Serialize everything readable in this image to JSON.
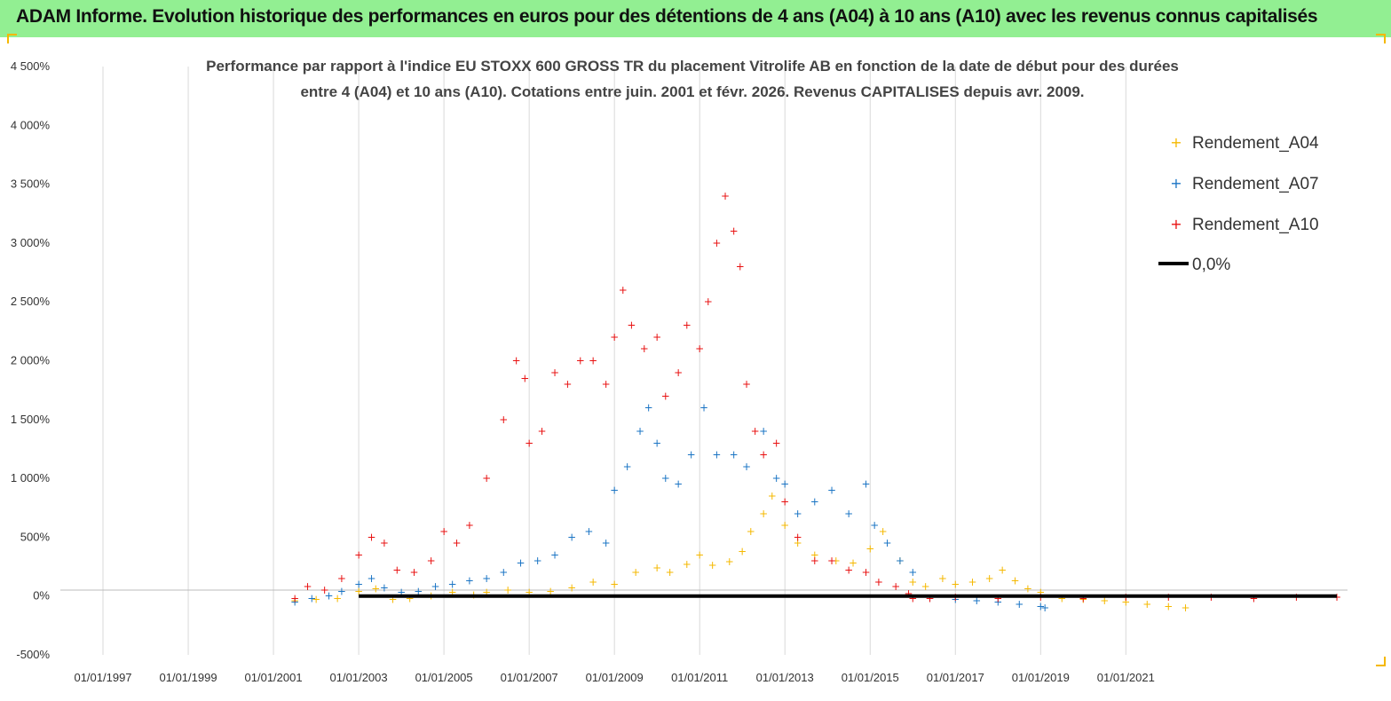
{
  "header": {
    "title": "ADAM Informe. Evolution historique des performances en euros pour des détentions de 4 ans (A04) à 10 ans (A10) avec les revenus connus capitalisés",
    "background": "#92ef92",
    "accent": "#f5b800"
  },
  "chart_data": {
    "type": "scatter",
    "title_line1": "Performance par rapport à l'indice EU STOXX 600 GROSS TR  du placement Vitrolife AB en fonction de la date de début pour des durées",
    "title_line2": "entre 4 (A04) et 10 ans (A10).  Cotations entre juin. 2001 et févr. 2026. Revenus CAPITALISES depuis avr. 2009.",
    "xlabel": "",
    "ylabel": "",
    "xlim": [
      1996.0,
      2026.2
    ],
    "ylim": [
      -500,
      4500
    ],
    "x_tick_labels": [
      "01/01/1997",
      "01/01/1999",
      "01/01/2001",
      "01/01/2003",
      "01/01/2005",
      "01/01/2007",
      "01/01/2009",
      "01/01/2011",
      "01/01/2013",
      "01/01/2015",
      "01/01/2017",
      "01/01/2019",
      "01/01/2021"
    ],
    "x_tick_values": [
      1997,
      1999,
      2001,
      2003,
      2005,
      2007,
      2009,
      2011,
      2013,
      2015,
      2017,
      2019,
      2021
    ],
    "y_tick_labels": [
      "4 500%",
      "4 000%",
      "3 500%",
      "3 000%",
      "2 500%",
      "2 000%",
      "1 500%",
      "1 000%",
      "500%",
      "0%",
      "-500%"
    ],
    "y_tick_values": [
      4500,
      4000,
      3500,
      3000,
      2500,
      2000,
      1500,
      1000,
      500,
      0,
      -500
    ],
    "grid": "vertical",
    "legend_position": "top-right",
    "series": [
      {
        "name": "Rendement_A04",
        "color": "#f5b800",
        "marker": "+",
        "points": [
          [
            2001.5,
            -40
          ],
          [
            2002.0,
            -30
          ],
          [
            2002.5,
            -20
          ],
          [
            2003.0,
            40
          ],
          [
            2003.4,
            60
          ],
          [
            2003.8,
            -30
          ],
          [
            2004.2,
            -20
          ],
          [
            2004.7,
            0
          ],
          [
            2005.2,
            30
          ],
          [
            2005.7,
            10
          ],
          [
            2006.0,
            30
          ],
          [
            2006.5,
            50
          ],
          [
            2007.0,
            30
          ],
          [
            2007.5,
            40
          ],
          [
            2008.0,
            70
          ],
          [
            2008.5,
            120
          ],
          [
            2009.0,
            100
          ],
          [
            2009.5,
            200
          ],
          [
            2010.0,
            240
          ],
          [
            2010.3,
            200
          ],
          [
            2010.7,
            270
          ],
          [
            2011.0,
            350
          ],
          [
            2011.3,
            260
          ],
          [
            2011.7,
            290
          ],
          [
            2012.0,
            380
          ],
          [
            2012.2,
            550
          ],
          [
            2012.5,
            700
          ],
          [
            2012.7,
            850
          ],
          [
            2013.0,
            600
          ],
          [
            2013.3,
            450
          ],
          [
            2013.7,
            350
          ],
          [
            2014.2,
            300
          ],
          [
            2014.6,
            280
          ],
          [
            2015.0,
            400
          ],
          [
            2015.3,
            550
          ],
          [
            2015.7,
            300
          ],
          [
            2016.0,
            120
          ],
          [
            2016.3,
            80
          ],
          [
            2016.7,
            150
          ],
          [
            2017.0,
            100
          ],
          [
            2017.4,
            120
          ],
          [
            2017.8,
            150
          ],
          [
            2018.1,
            220
          ],
          [
            2018.4,
            130
          ],
          [
            2018.7,
            60
          ],
          [
            2019.0,
            30
          ],
          [
            2019.5,
            -20
          ],
          [
            2020.0,
            -30
          ],
          [
            2020.5,
            -40
          ],
          [
            2021.0,
            -50
          ],
          [
            2021.5,
            -70
          ],
          [
            2022.0,
            -90
          ],
          [
            2022.4,
            -100
          ]
        ]
      },
      {
        "name": "Rendement_A07",
        "color": "#1a74c4",
        "marker": "+",
        "points": [
          [
            2001.5,
            -50
          ],
          [
            2001.9,
            -20
          ],
          [
            2002.3,
            0
          ],
          [
            2002.6,
            40
          ],
          [
            2003.0,
            100
          ],
          [
            2003.3,
            150
          ],
          [
            2003.6,
            70
          ],
          [
            2004.0,
            30
          ],
          [
            2004.4,
            40
          ],
          [
            2004.8,
            80
          ],
          [
            2005.2,
            100
          ],
          [
            2005.6,
            130
          ],
          [
            2006.0,
            150
          ],
          [
            2006.4,
            200
          ],
          [
            2006.8,
            280
          ],
          [
            2007.2,
            300
          ],
          [
            2007.6,
            350
          ],
          [
            2008.0,
            500
          ],
          [
            2008.4,
            550
          ],
          [
            2008.8,
            450
          ],
          [
            2009.0,
            900
          ],
          [
            2009.3,
            1100
          ],
          [
            2009.6,
            1400
          ],
          [
            2009.8,
            1600
          ],
          [
            2010.0,
            1300
          ],
          [
            2010.2,
            1000
          ],
          [
            2010.5,
            950
          ],
          [
            2010.8,
            1200
          ],
          [
            2011.1,
            1600
          ],
          [
            2011.4,
            1200
          ],
          [
            2011.8,
            1200
          ],
          [
            2012.1,
            1100
          ],
          [
            2012.5,
            1400
          ],
          [
            2012.8,
            1000
          ],
          [
            2013.0,
            950
          ],
          [
            2013.3,
            700
          ],
          [
            2013.7,
            800
          ],
          [
            2014.1,
            900
          ],
          [
            2014.5,
            700
          ],
          [
            2014.9,
            950
          ],
          [
            2015.1,
            600
          ],
          [
            2015.4,
            450
          ],
          [
            2015.7,
            300
          ],
          [
            2016.0,
            200
          ],
          [
            2016.4,
            -20
          ],
          [
            2017.0,
            -30
          ],
          [
            2017.5,
            -40
          ],
          [
            2018.0,
            -50
          ],
          [
            2018.5,
            -70
          ],
          [
            2019.0,
            -90
          ],
          [
            2019.1,
            -100
          ]
        ]
      },
      {
        "name": "Rendement_A10",
        "color": "#e81010",
        "marker": "+",
        "points": [
          [
            2001.5,
            -20
          ],
          [
            2001.8,
            80
          ],
          [
            2002.2,
            50
          ],
          [
            2002.6,
            150
          ],
          [
            2003.0,
            350
          ],
          [
            2003.3,
            500
          ],
          [
            2003.6,
            450
          ],
          [
            2003.9,
            220
          ],
          [
            2004.3,
            200
          ],
          [
            2004.7,
            300
          ],
          [
            2005.0,
            550
          ],
          [
            2005.3,
            450
          ],
          [
            2005.6,
            600
          ],
          [
            2006.0,
            1000
          ],
          [
            2006.4,
            1500
          ],
          [
            2006.7,
            2000
          ],
          [
            2006.9,
            1850
          ],
          [
            2007.0,
            1300
          ],
          [
            2007.3,
            1400
          ],
          [
            2007.6,
            1900
          ],
          [
            2007.9,
            1800
          ],
          [
            2008.2,
            2000
          ],
          [
            2008.5,
            2000
          ],
          [
            2008.8,
            1800
          ],
          [
            2009.0,
            2200
          ],
          [
            2009.2,
            2600
          ],
          [
            2009.4,
            2300
          ],
          [
            2009.7,
            2100
          ],
          [
            2010.0,
            2200
          ],
          [
            2010.2,
            1700
          ],
          [
            2010.5,
            1900
          ],
          [
            2010.7,
            2300
          ],
          [
            2011.0,
            2100
          ],
          [
            2011.2,
            2500
          ],
          [
            2011.4,
            3000
          ],
          [
            2011.6,
            3400
          ],
          [
            2011.8,
            3100
          ],
          [
            2011.95,
            2800
          ],
          [
            2012.1,
            1800
          ],
          [
            2012.3,
            1400
          ],
          [
            2012.5,
            1200
          ],
          [
            2012.8,
            1300
          ],
          [
            2013.0,
            800
          ],
          [
            2013.3,
            500
          ],
          [
            2013.7,
            300
          ],
          [
            2014.1,
            300
          ],
          [
            2014.5,
            220
          ],
          [
            2014.9,
            200
          ],
          [
            2015.2,
            120
          ],
          [
            2015.6,
            80
          ],
          [
            2015.9,
            20
          ],
          [
            2016.0,
            -20
          ],
          [
            2016.4,
            -20
          ],
          [
            2017.0,
            -10
          ],
          [
            2018.0,
            -20
          ],
          [
            2019.0,
            -10
          ],
          [
            2020.0,
            -20
          ],
          [
            2021.0,
            -10
          ],
          [
            2022.0,
            -10
          ],
          [
            2023.0,
            -10
          ],
          [
            2024.0,
            -20
          ],
          [
            2025.0,
            -10
          ],
          [
            2025.95,
            -10
          ]
        ]
      },
      {
        "name": "0,0%",
        "color": "#000000",
        "marker": "line",
        "points": [
          [
            2003.0,
            0
          ],
          [
            2025.95,
            0
          ]
        ]
      }
    ]
  }
}
